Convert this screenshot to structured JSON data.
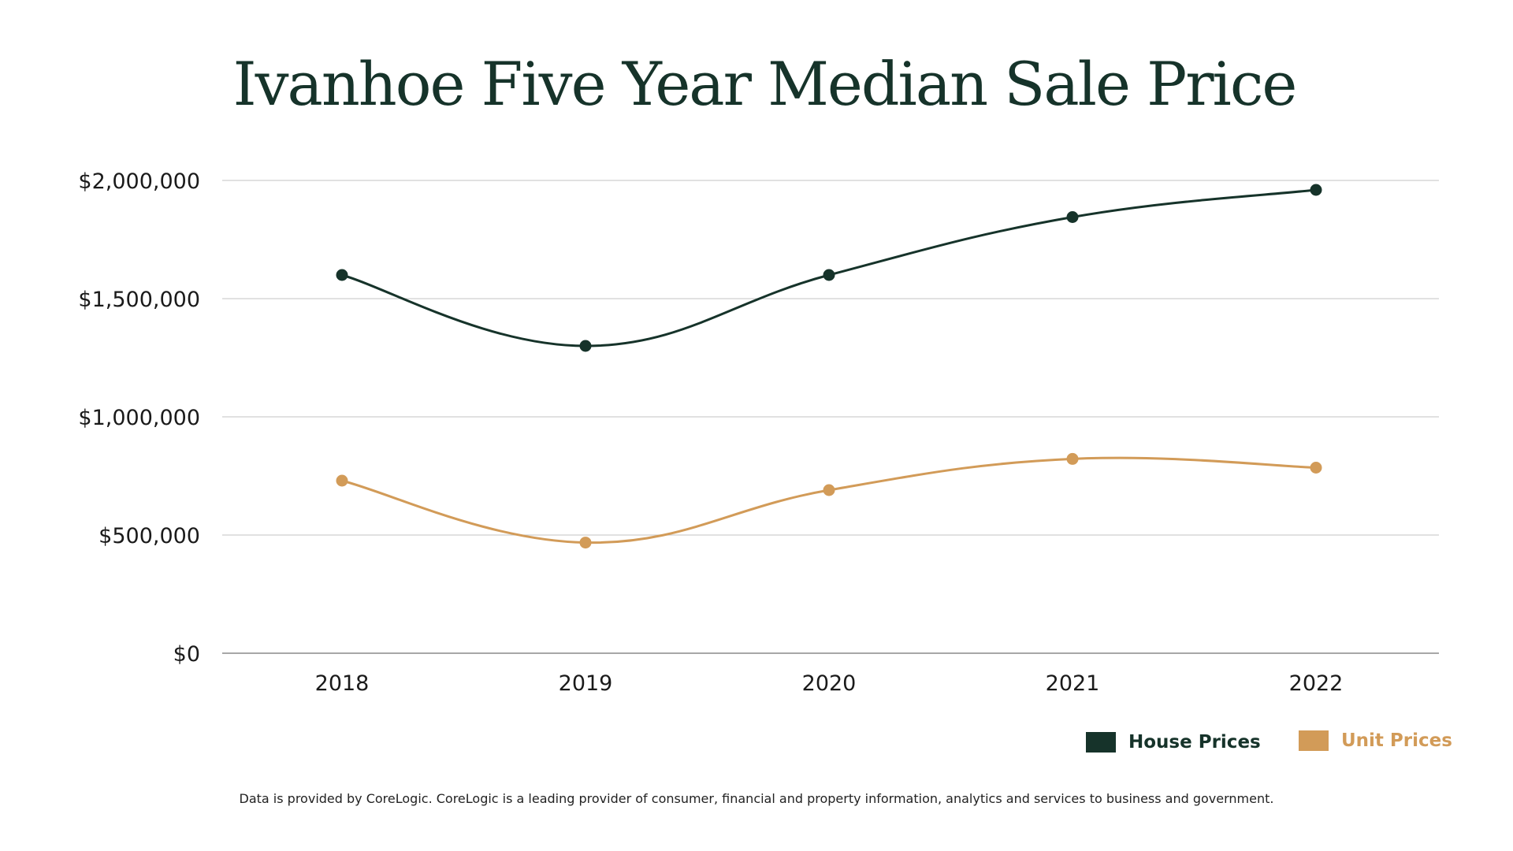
{
  "chart_data": {
    "type": "line",
    "title": "Ivanhoe Five Year Median Sale Price",
    "xlabel": "",
    "ylabel": "",
    "categories": [
      "2018",
      "2019",
      "2020",
      "2021",
      "2022"
    ],
    "ylim": [
      0,
      2000000
    ],
    "y_ticks": [
      0,
      500000,
      1000000,
      1500000,
      2000000
    ],
    "y_tick_labels": [
      "$0",
      "$500,000",
      "$1,000,000",
      "$1,500,000",
      "$2,000,000"
    ],
    "grid": true,
    "smooth": true,
    "legend_position": "bottom-right",
    "series": [
      {
        "name": "House Prices",
        "color": "#16332a",
        "values": [
          1600000,
          1300000,
          1600000,
          1845000,
          1960000
        ]
      },
      {
        "name": "Unit Prices",
        "color": "#d29b58",
        "values": [
          730000,
          468000,
          690000,
          822000,
          785000
        ]
      }
    ]
  },
  "footnote": "Data is provided by CoreLogic. CoreLogic is a leading provider of consumer, financial and property information, analytics and services to business and government."
}
